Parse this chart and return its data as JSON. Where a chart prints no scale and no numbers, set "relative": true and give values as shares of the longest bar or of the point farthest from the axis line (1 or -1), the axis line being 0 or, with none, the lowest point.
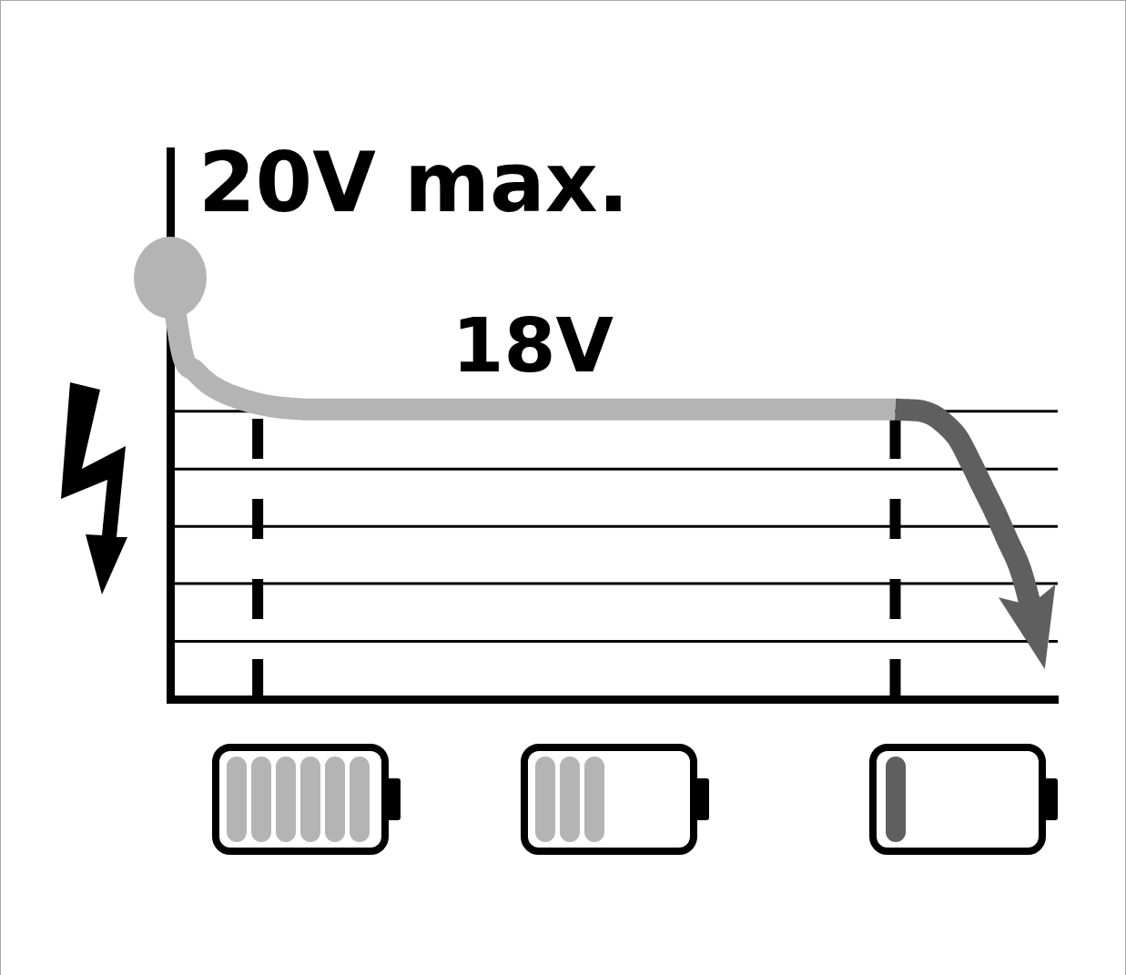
{
  "chart_data": {
    "type": "line",
    "relative": true,
    "marker": "none",
    "categories": [
      null,
      null,
      null,
      null,
      null,
      null,
      null,
      null,
      null,
      null,
      null,
      null,
      null,
      null,
      null,
      null,
      null,
      null,
      null,
      null,
      null,
      null,
      null,
      null,
      null,
      null,
      null,
      null,
      null,
      null,
      null,
      null,
      null,
      null,
      null,
      null,
      null,
      null,
      null,
      null,
      null,
      null,
      null,
      null,
      null,
      null,
      null,
      null,
      null,
      null,
      null,
      null,
      null,
      null,
      null,
      null,
      null,
      null,
      null,
      null,
      null,
      null,
      null,
      null,
      null,
      null,
      null,
      null,
      null,
      null,
      null,
      null
    ],
    "series": [
      {
        "color": "#b4b4b4",
        "values": [
          1,
          0.816,
          0.778,
          0.75,
          0.732,
          0.719,
          0.709,
          0.701,
          0.695,
          0.691,
          0.689,
          0.687,
          0.687,
          0.687,
          0.687,
          0.687,
          0.687,
          0.687,
          0.687,
          0.687,
          0.687,
          0.687,
          0.687,
          0.687,
          0.687,
          0.687,
          0.687,
          0.687,
          0.687,
          0.687,
          0.687,
          0.687,
          0.687,
          0.687,
          0.687,
          0.687,
          0.687,
          0.687,
          0.687,
          0.687,
          0.687,
          0.687,
          0.687,
          0.687,
          0.687,
          0.687,
          0.687,
          0.687,
          0.687,
          0.687,
          0.687,
          0.687,
          0.687,
          0.687,
          0.687,
          0.687,
          0.687,
          0.687,
          0.687,
          null,
          null,
          null,
          null,
          null,
          null,
          null,
          null,
          null,
          null,
          null,
          null,
          null
        ]
      },
      {
        "color": "#5f5f5f",
        "values": [
          null,
          null,
          null,
          null,
          null,
          null,
          null,
          null,
          null,
          null,
          null,
          null,
          null,
          null,
          null,
          null,
          null,
          null,
          null,
          null,
          null,
          null,
          null,
          null,
          null,
          null,
          null,
          null,
          null,
          null,
          null,
          null,
          null,
          null,
          null,
          null,
          null,
          null,
          null,
          null,
          null,
          null,
          null,
          null,
          null,
          null,
          null,
          null,
          null,
          null,
          null,
          null,
          null,
          null,
          null,
          null,
          null,
          null,
          0.687,
          0.686,
          0.684,
          0.674,
          0.652,
          0.62,
          0.564,
          0.503,
          0.443,
          0.376,
          0.309,
          0.201,
          0.071,
          null
        ]
      }
    ],
    "ref_lines": [
      {
        "axis": "y",
        "value": 0.137,
        "color": "#000000"
      },
      {
        "axis": "y",
        "value": 0.274,
        "color": "#000000"
      },
      {
        "axis": "y",
        "value": 0.41,
        "color": "#000000"
      },
      {
        "axis": "y",
        "value": 0.546,
        "color": "#000000"
      },
      {
        "axis": "y",
        "value": 0.683,
        "color": "#000000"
      }
    ],
    "annotations": [
      "20V max.",
      "18V"
    ]
  }
}
